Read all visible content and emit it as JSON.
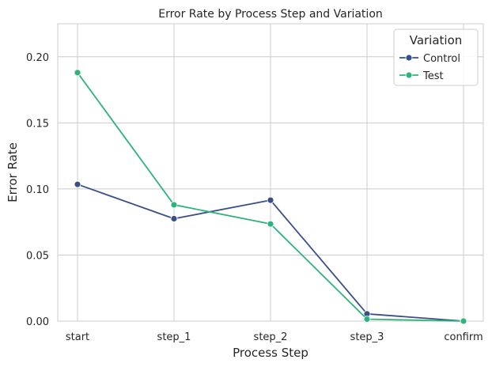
{
  "chart_data": {
    "type": "line",
    "title": "Error Rate by Process Step and Variation",
    "xlabel": "Process Step",
    "ylabel": "Error Rate",
    "categories": [
      "start",
      "step_1",
      "step_2",
      "step_3",
      "confirm"
    ],
    "yticks": [
      "0.00",
      "0.05",
      "0.10",
      "0.15",
      "0.20"
    ],
    "ylim": [
      0,
      0.225
    ],
    "grid": true,
    "legend": {
      "title": "Variation",
      "placement": "top-right"
    },
    "series": [
      {
        "name": "Control",
        "color": "#3a4f8a",
        "values": [
          0.1035,
          0.0775,
          0.0915,
          0.0055,
          0.0
        ]
      },
      {
        "name": "Test",
        "color": "#2fb37c",
        "values": [
          0.188,
          0.088,
          0.0735,
          0.0015,
          0.0
        ]
      }
    ]
  }
}
